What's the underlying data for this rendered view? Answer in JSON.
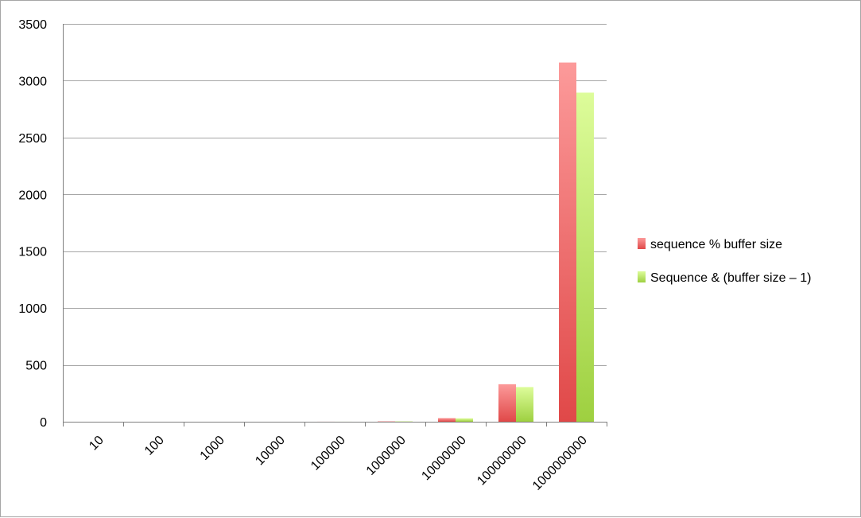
{
  "chart_data": {
    "type": "bar",
    "title": "",
    "xlabel": "",
    "ylabel": "",
    "categories": [
      "10",
      "100",
      "1000",
      "10000",
      "100000",
      "1000000",
      "10000000",
      "100000000",
      "1000000000"
    ],
    "series": [
      {
        "name": "sequence % buffer size",
        "color": "#e04848",
        "color_light": "#fc9a9a",
        "values": [
          0,
          0,
          0,
          0,
          0.5,
          3,
          32,
          330,
          3160
        ]
      },
      {
        "name": "Sequence & (buffer size – 1)",
        "color": "#9ed040",
        "color_light": "#ddfc9a",
        "values": [
          0,
          0,
          0,
          0,
          0.4,
          3,
          30,
          305,
          2895
        ]
      }
    ],
    "ylim": [
      0,
      3500
    ],
    "yticks": [
      0,
      500,
      1000,
      1500,
      2000,
      2500,
      3000,
      3500
    ],
    "grid": true,
    "legend_position": "right"
  }
}
